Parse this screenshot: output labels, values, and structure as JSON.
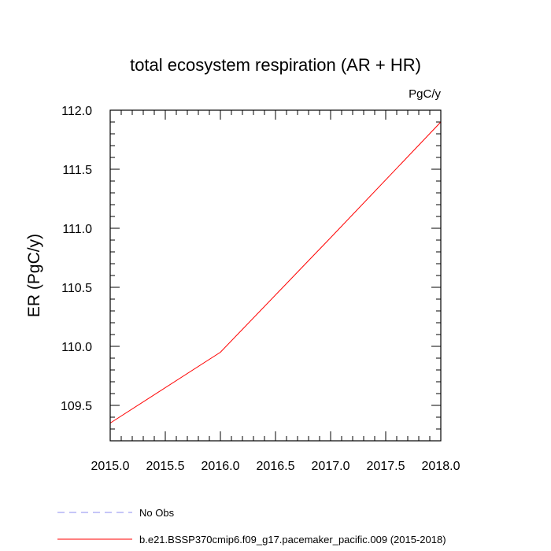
{
  "chart_data": {
    "type": "line",
    "title": "total ecosystem respiration (AR + HR)",
    "units_label": "PgC/y",
    "ylabel": "ER  (PgC/y)",
    "xlabel": "",
    "xlim": [
      2015.0,
      2018.0
    ],
    "ylim": [
      109.2,
      112.0
    ],
    "x_ticks": [
      "2015.0",
      "2015.5",
      "2016.0",
      "2016.5",
      "2017.0",
      "2017.5",
      "2018.0"
    ],
    "y_ticks": [
      "109.5",
      "110.0",
      "110.5",
      "111.0",
      "111.5",
      "112.0"
    ],
    "grid": false,
    "series": [
      {
        "name": "b.e21.BSSP370cmip6.f09_g17.pacemaker_pacific.009 (2015-2018)",
        "color": "#ff0000",
        "style": "solid",
        "x": [
          2015,
          2016,
          2017,
          2018
        ],
        "y": [
          109.35,
          109.95,
          110.92,
          111.9
        ]
      }
    ],
    "legend": [
      {
        "label": "No Obs",
        "color": "#8c8cf0",
        "style": "dashed"
      },
      {
        "label": "b.e21.BSSP370cmip6.f09_g17.pacemaker_pacific.009 (2015-2018)",
        "color": "#ff0000",
        "style": "solid"
      }
    ],
    "legend_placement": "bottom-left"
  }
}
